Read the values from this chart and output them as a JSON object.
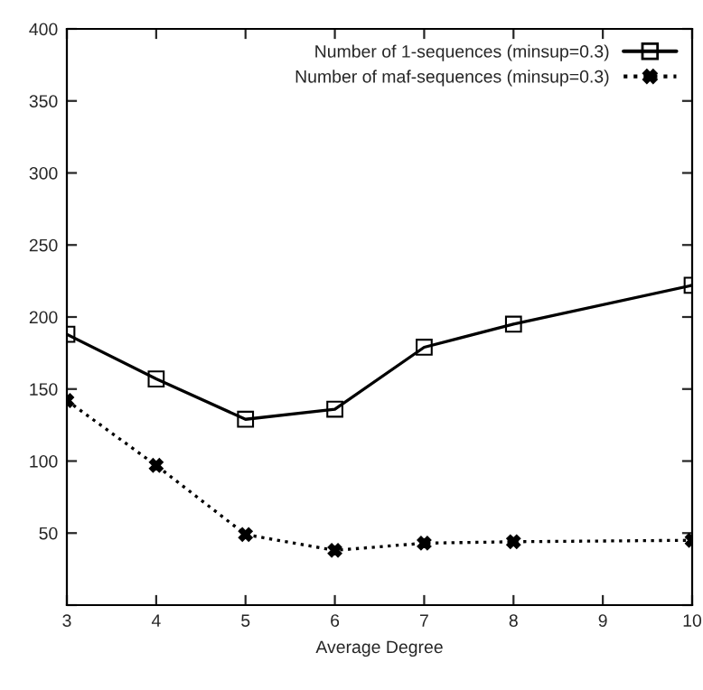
{
  "chart_data": {
    "type": "line",
    "xlabel": "Average Degree",
    "x": [
      3,
      4,
      5,
      6,
      7,
      8,
      10
    ],
    "series": [
      {
        "name": "Number of 1-sequences (minsup=0.3)",
        "color": "#000000",
        "values": [
          188,
          157,
          129,
          136,
          179,
          195,
          222
        ],
        "marker": "square",
        "line_style": "solid"
      },
      {
        "name": "Number of maf-sequences (minsup=0.3)",
        "color": "#000000",
        "values": [
          142,
          97,
          49,
          38,
          43,
          44,
          45
        ],
        "marker": "cross",
        "line_style": "dotted"
      }
    ],
    "xlim": [
      3,
      10
    ],
    "xticks": [
      3,
      4,
      5,
      6,
      7,
      8,
      9,
      10
    ],
    "ylim": [
      0,
      400
    ],
    "yticks": [
      {
        "value": 0,
        "label": null
      },
      50,
      100,
      150,
      200,
      250,
      300,
      350,
      400
    ],
    "grid": false,
    "legend": "top right"
  }
}
